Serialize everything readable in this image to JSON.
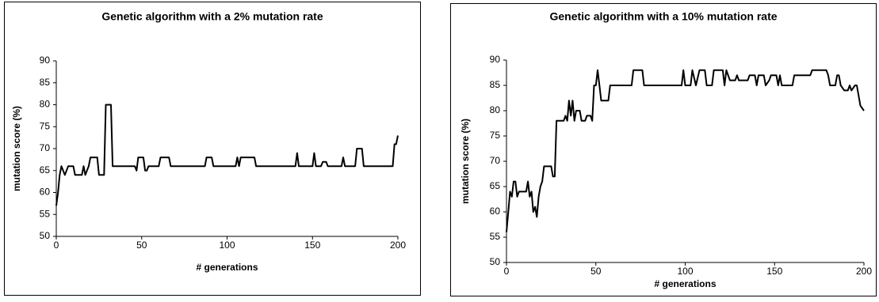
{
  "chart_data": [
    {
      "type": "line",
      "title": "Genetic algorithm with a 2% mutation rate",
      "xlabel": "# generations",
      "ylabel": "mutation score (%)",
      "x": [
        0,
        1,
        2,
        3,
        5,
        7,
        10,
        11,
        15,
        16,
        17,
        19,
        20,
        24,
        25,
        28,
        29,
        32,
        33,
        46,
        47,
        48,
        51,
        52,
        53,
        54,
        60,
        61,
        66,
        67,
        87,
        88,
        91,
        92,
        105,
        106,
        107,
        108,
        116,
        117,
        140,
        141,
        142,
        150,
        151,
        152,
        155,
        156,
        158,
        159,
        167,
        168,
        169,
        175,
        176,
        179,
        180,
        197,
        198,
        199,
        200
      ],
      "values": [
        57,
        60,
        64,
        66,
        64,
        66,
        66,
        64,
        64,
        66,
        64,
        66,
        68,
        68,
        64,
        64,
        80,
        80,
        66,
        66,
        65,
        68,
        68,
        65,
        65,
        66,
        66,
        68,
        68,
        66,
        66,
        68,
        68,
        66,
        66,
        68,
        66,
        68,
        68,
        66,
        66,
        69,
        66,
        66,
        69,
        66,
        66,
        67,
        67,
        66,
        66,
        68,
        66,
        66,
        70,
        70,
        66,
        66,
        71,
        71,
        73
      ],
      "color": "#000000",
      "xlim": [
        0,
        200
      ],
      "ylim": [
        50,
        90
      ],
      "xticks": [
        0,
        50,
        100,
        150,
        200
      ],
      "yticks": [
        50,
        55,
        60,
        65,
        70,
        75,
        80,
        85,
        90
      ]
    },
    {
      "type": "line",
      "title": "Genetic algorithm with a 10% mutation rate",
      "xlabel": "# generations",
      "ylabel": "mutation score (%)",
      "x": [
        0,
        1,
        2,
        3,
        4,
        5,
        6,
        7,
        11,
        12,
        13,
        14,
        15,
        16,
        17,
        18,
        19,
        20,
        21,
        25,
        26,
        27,
        28,
        32,
        33,
        34,
        35,
        36,
        37,
        38,
        39,
        41,
        42,
        44,
        45,
        47,
        48,
        49,
        50,
        51,
        52,
        53,
        57,
        58,
        70,
        71,
        76,
        77,
        98,
        99,
        100,
        103,
        104,
        106,
        108,
        111,
        112,
        115,
        116,
        121,
        122,
        123,
        125,
        128,
        129,
        130,
        135,
        136,
        139,
        140,
        141,
        144,
        145,
        147,
        148,
        151,
        152,
        153,
        154,
        160,
        161,
        170,
        171,
        179,
        180,
        181,
        184,
        185,
        186,
        187,
        189,
        191,
        192,
        193,
        195,
        196,
        198,
        200
      ],
      "values": [
        56,
        60,
        64,
        63,
        66,
        66,
        63,
        64,
        64,
        66,
        63,
        64,
        60,
        61,
        59,
        63,
        65,
        66,
        69,
        69,
        67,
        67,
        78,
        78,
        79,
        78,
        82,
        79,
        82,
        78,
        80,
        80,
        78,
        78,
        79,
        79,
        78,
        85,
        85,
        88,
        85,
        82,
        82,
        85,
        85,
        88,
        88,
        85,
        85,
        88,
        85,
        85,
        88,
        85,
        88,
        88,
        85,
        85,
        88,
        88,
        85,
        88,
        86,
        86,
        87,
        86,
        86,
        87,
        87,
        85,
        87,
        87,
        85,
        86,
        87,
        87,
        85,
        87,
        85,
        85,
        87,
        87,
        88,
        88,
        87,
        85,
        85,
        87,
        87,
        85,
        84,
        84,
        85,
        84,
        85,
        85,
        81,
        80
      ],
      "color": "#000000",
      "xlim": [
        0,
        200
      ],
      "ylim": [
        50,
        90
      ],
      "xticks": [
        0,
        50,
        100,
        150,
        200
      ],
      "yticks": [
        50,
        55,
        60,
        65,
        70,
        75,
        80,
        85,
        90
      ]
    }
  ]
}
